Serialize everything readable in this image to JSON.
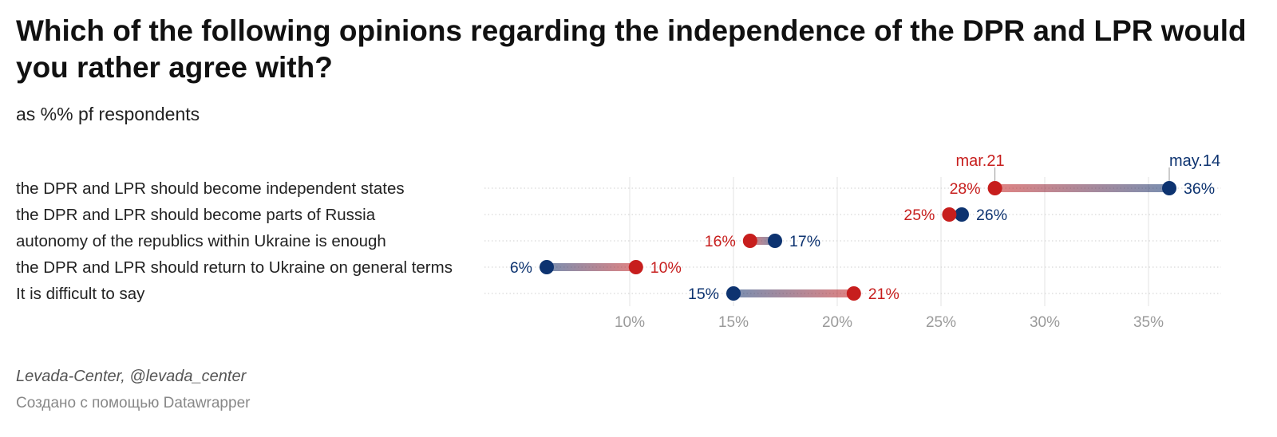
{
  "header": {
    "title": "Which of the following opinions regarding the independence of the DPR and LPR would you rather agree with?",
    "subtitle": "as %% pf respondents"
  },
  "footer": {
    "source": "Levada-Center, @levada_center",
    "credit": "Создано с помощью Datawrapper"
  },
  "colors": {
    "mar21": "#c71e1d",
    "may14": "#0d3370",
    "grid": "#e3e3e3",
    "tick": "#9a9a9a"
  },
  "chart_data": {
    "type": "dot-range",
    "title": "Which of the following opinions regarding the independence of the DPR and LPR would you rather agree with?",
    "subtitle": "as %% pf respondents",
    "x_ticks": [
      10,
      15,
      20,
      25,
      30,
      35
    ],
    "x_tick_labels": [
      "10%",
      "15%",
      "20%",
      "25%",
      "30%",
      "35%"
    ],
    "xlim": [
      3,
      38.5
    ],
    "grid": true,
    "series": [
      {
        "name": "mar.21",
        "color": "#c71e1d"
      },
      {
        "name": "may.14",
        "color": "#0d3370"
      }
    ],
    "categories": [
      "the DPR and LPR should become independent states",
      "the DPR and LPR should become parts of Russia",
      "autonomy of the republics within Ukraine is enough",
      "the DPR and LPR should return to Ukraine on general terms",
      "It is difficult to say"
    ],
    "rows": [
      {
        "mar21": 27.6,
        "may14": 36.0,
        "mar21_label": "28%",
        "may14_label": "36%"
      },
      {
        "mar21": 25.4,
        "may14": 26.0,
        "mar21_label": "25%",
        "may14_label": "26%"
      },
      {
        "mar21": 15.8,
        "may14": 17.0,
        "mar21_label": "16%",
        "may14_label": "17%"
      },
      {
        "mar21": 10.3,
        "may14": 6.0,
        "mar21_label": "10%",
        "may14_label": "6%"
      },
      {
        "mar21": 20.8,
        "may14": 15.0,
        "mar21_label": "21%",
        "may14_label": "15%"
      }
    ]
  }
}
